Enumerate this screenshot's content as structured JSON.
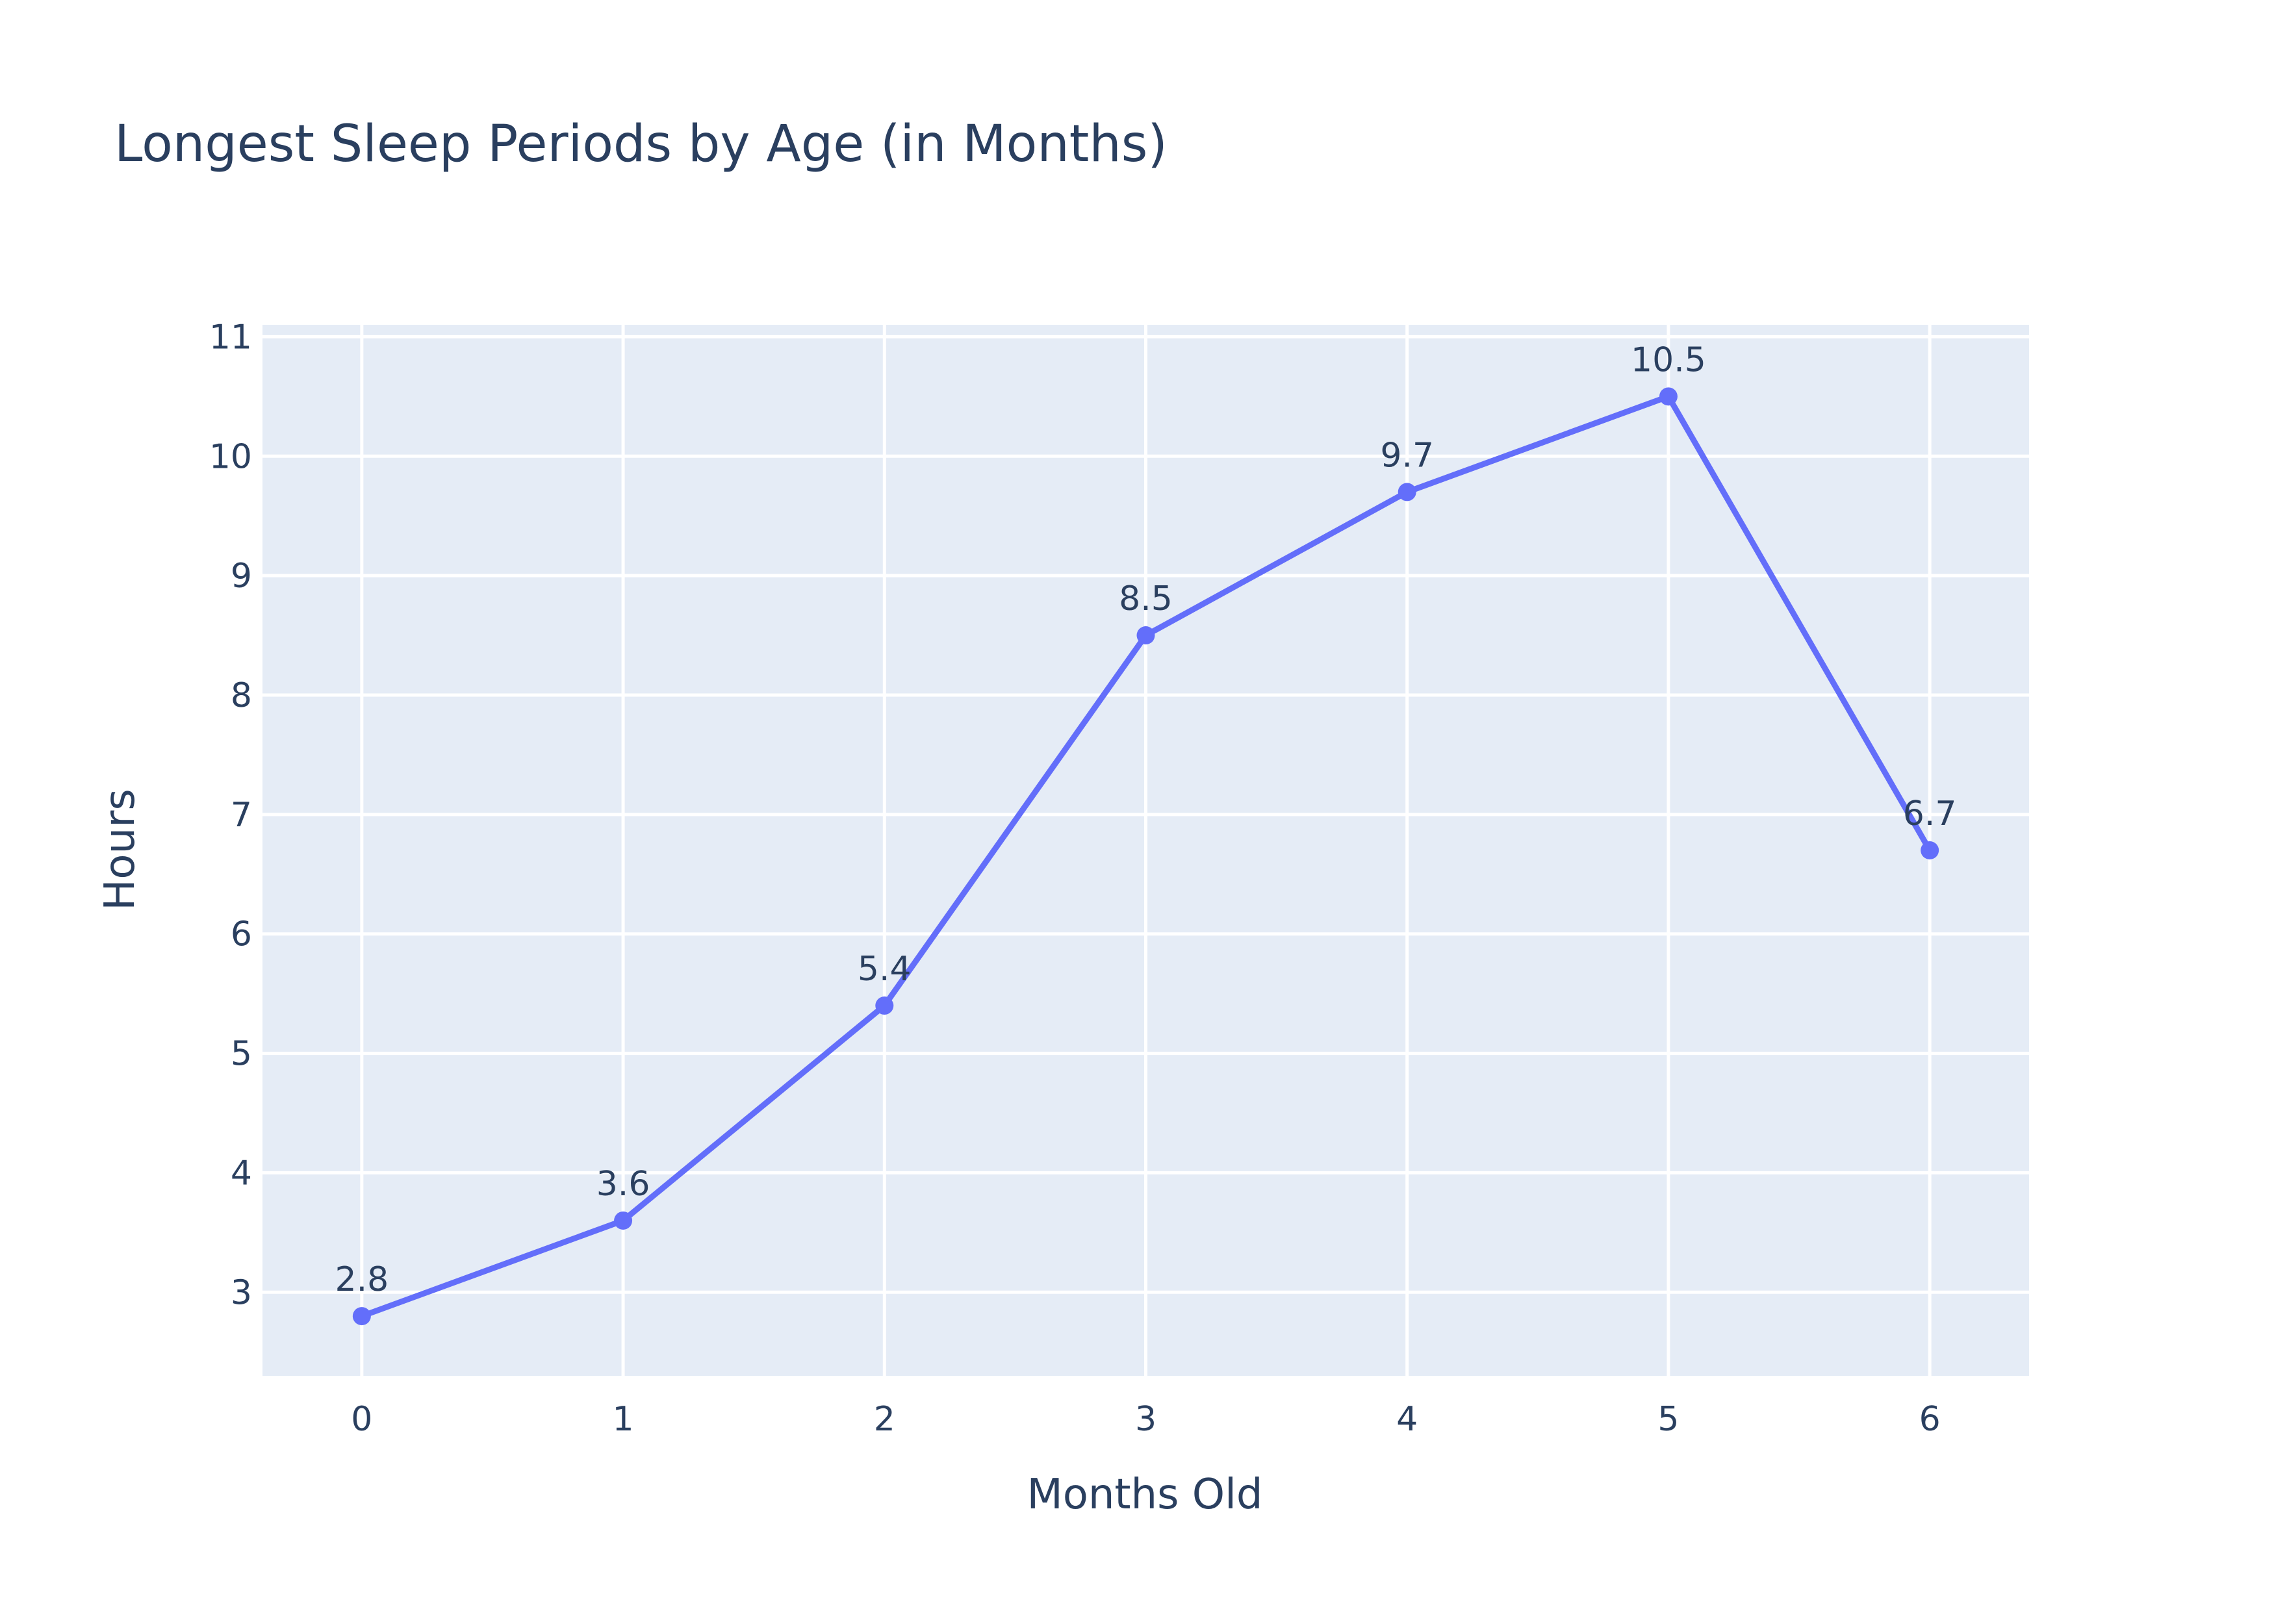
{
  "chart_data": {
    "type": "line",
    "title": "Longest Sleep Periods by Age (in Months)",
    "xlabel": "Months Old",
    "ylabel": "Hours",
    "x": [
      0,
      1,
      2,
      3,
      4,
      5,
      6
    ],
    "series": [
      {
        "values": [
          2.8,
          3.6,
          5.4,
          8.5,
          9.7,
          10.5,
          6.7
        ],
        "labels": [
          "2.8",
          "3.6",
          "5.4",
          "8.5",
          "9.7",
          "10.5",
          "6.7"
        ]
      }
    ],
    "xticks": [
      "0",
      "1",
      "2",
      "3",
      "4",
      "5",
      "6"
    ],
    "yticks": [
      "3",
      "4",
      "5",
      "6",
      "7",
      "8",
      "9",
      "10",
      "11"
    ],
    "xlim": [
      -0.38,
      6.38
    ],
    "ylim": [
      2.3,
      11.1
    ],
    "grid": true,
    "legend": "none"
  },
  "colors": {
    "plot_background": "#e5ecf6",
    "grid": "#ffffff",
    "line": "#636efa",
    "text": "#2a3f5f"
  }
}
